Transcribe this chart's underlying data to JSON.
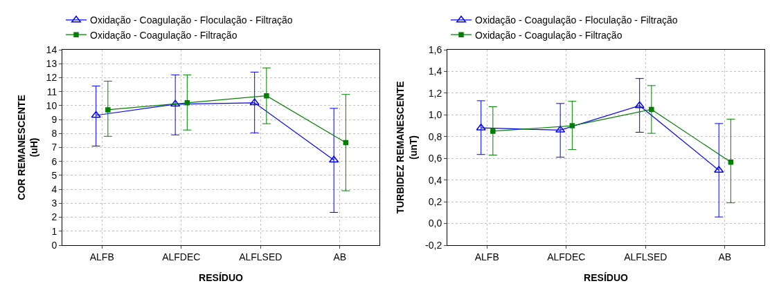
{
  "chart_data": [
    {
      "type": "line",
      "xlabel": "RESÍDUO",
      "ylabel": "COR REMANESCENTE\n(uH)",
      "categories": [
        "ALFB",
        "ALFDEC",
        "ALFLSED",
        "AB"
      ],
      "ylim": [
        0,
        14
      ],
      "yticks": [
        0,
        1,
        2,
        3,
        4,
        5,
        6,
        7,
        8,
        9,
        10,
        11,
        12,
        13,
        14
      ],
      "grid": true,
      "legend": "top left",
      "series": [
        {
          "name": "Oxidação - Coagulação - Floculação - Filtração",
          "color": "#0000ff",
          "marker": "triangle",
          "values": [
            9.3,
            10.1,
            10.2,
            6.1
          ],
          "errors": [
            [
              7.1,
              11.4
            ],
            [
              7.9,
              12.2
            ],
            [
              8.05,
              12.4
            ],
            [
              2.35,
              9.8
            ]
          ]
        },
        {
          "name": "Oxidação - Coagulação - Filtração",
          "color": "#008000",
          "marker": "square",
          "values": [
            9.7,
            10.2,
            10.7,
            7.35
          ],
          "errors": [
            [
              7.8,
              11.75
            ],
            [
              8.25,
              12.2
            ],
            [
              8.7,
              12.7
            ],
            [
              3.9,
              10.8
            ]
          ]
        }
      ]
    },
    {
      "type": "line",
      "xlabel": "RESÍDUO",
      "ylabel": "TURBIDEZ REMANESCENTE\n(unT)",
      "categories": [
        "ALFB",
        "ALFDEC",
        "ALFLSED",
        "AB"
      ],
      "ylim": [
        -0.2,
        1.6
      ],
      "yticks": [
        {
          "value": -0.2,
          "label": "-0,2"
        },
        {
          "value": 0,
          "label": "0,0"
        },
        {
          "value": 0.2,
          "label": "0,2"
        },
        {
          "value": 0.4,
          "label": "0,4"
        },
        {
          "value": 0.6,
          "label": "0,6"
        },
        {
          "value": 0.8,
          "label": "0,8"
        },
        {
          "value": 1.0,
          "label": "1,0"
        },
        {
          "value": 1.2,
          "label": "1,2"
        },
        {
          "value": 1.4,
          "label": "1,4"
        },
        {
          "value": 1.6,
          "label": "1,6"
        }
      ],
      "grid": true,
      "legend": "top left",
      "series": [
        {
          "name": "Oxidação - Coagulação - Floculação - Filtração",
          "color": "#0000ff",
          "marker": "triangle",
          "values": [
            0.88,
            0.86,
            1.085,
            0.49
          ],
          "errors": [
            [
              0.635,
              1.13
            ],
            [
              0.61,
              1.105
            ],
            [
              0.84,
              1.335
            ],
            [
              0.06,
              0.92
            ]
          ]
        },
        {
          "name": "Oxidação - Coagulação - Filtração",
          "color": "#008000",
          "marker": "square",
          "values": [
            0.85,
            0.9,
            1.05,
            0.565
          ],
          "errors": [
            [
              0.63,
              1.075
            ],
            [
              0.68,
              1.125
            ],
            [
              0.83,
              1.27
            ],
            [
              0.19,
              0.96
            ]
          ]
        }
      ]
    }
  ]
}
